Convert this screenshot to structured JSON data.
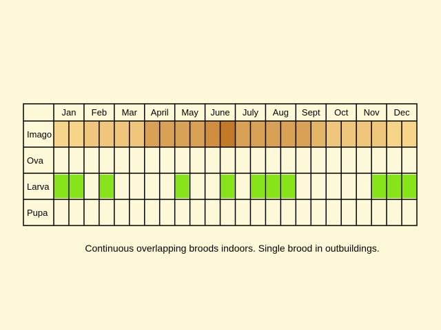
{
  "chart_data": {
    "type": "table",
    "months": [
      "Jan",
      "Feb",
      "Mar",
      "April",
      "May",
      "June",
      "July",
      "Aug",
      "Sept",
      "Oct",
      "Nov",
      "Dec"
    ],
    "stages": [
      "Imago",
      "Ova",
      "Larva",
      "Pupa"
    ],
    "weeks_per_month": 2,
    "imago_color_by_week": [
      "#f6d489",
      "#f6d489",
      "#f0c67c",
      "#f0c67c",
      "#f0c67c",
      "#f0c67c",
      "#d8a155",
      "#d8a155",
      "#d8a155",
      "#d8a155",
      "#d08f40",
      "#c37a28",
      "#d8a155",
      "#d8a155",
      "#d8a155",
      "#d8a155",
      "#d8a155",
      "#e2b569",
      "#f0c67c",
      "#f0c67c",
      "#f0c67c",
      "#f0c67c",
      "#f6d489",
      "#f6d489"
    ],
    "larva_present_by_week": [
      true,
      true,
      false,
      true,
      false,
      false,
      false,
      false,
      true,
      false,
      false,
      true,
      false,
      true,
      true,
      true,
      false,
      false,
      false,
      false,
      false,
      true,
      true,
      true
    ],
    "ova_present_by_week": [
      false,
      false,
      false,
      false,
      false,
      false,
      false,
      false,
      false,
      false,
      false,
      false,
      false,
      false,
      false,
      false,
      false,
      false,
      false,
      false,
      false,
      false,
      false,
      false
    ],
    "pupa_present_by_week": [
      false,
      false,
      false,
      false,
      false,
      false,
      false,
      false,
      false,
      false,
      false,
      false,
      false,
      false,
      false,
      false,
      false,
      false,
      false,
      false,
      false,
      false,
      false,
      false
    ],
    "larva_color": "#88e41a",
    "background_color": "#fdf8d8",
    "grid_color": "#000000"
  },
  "caption": "Continuous overlapping broods indoors. Single brood in outbuildings."
}
